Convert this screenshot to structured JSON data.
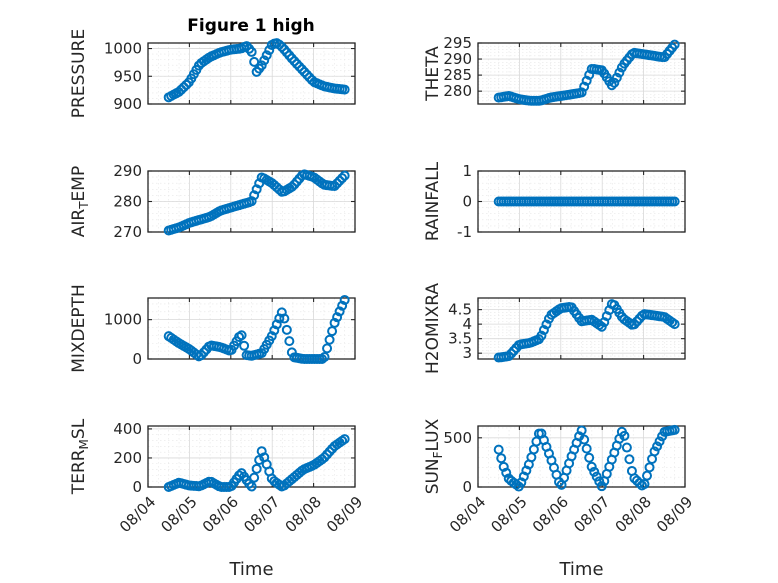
{
  "figure": {
    "title": "Figure 1 high",
    "marker_color": "#0072BD"
  },
  "chart_data": [
    {
      "type": "scatter",
      "title": "Figure 1 high",
      "ylabel": "PRESSURE",
      "ylim": [
        900,
        1010
      ],
      "yticks": [
        "900",
        "950",
        "1000"
      ],
      "xlim": [
        "08/04",
        "08/09"
      ],
      "xlabel": "",
      "xticklabels": [],
      "series": [
        {
          "x": [
            "08/04 12:00",
            "08/04 18:00",
            "08/05 00:00",
            "08/05 06:00",
            "08/05 12:00",
            "08/05 18:00",
            "08/06 00:00",
            "08/06 06:00",
            "08/06 09:00",
            "08/06 12:00",
            "08/06 15:00",
            "08/06 18:00",
            "08/07 00:00",
            "08/07 03:00",
            "08/07 06:00",
            "08/07 12:00",
            "08/07 18:00",
            "08/08 00:00",
            "08/08 06:00",
            "08/08 12:00",
            "08/08 18:00"
          ],
          "y": [
            912,
            922,
            940,
            972,
            985,
            993,
            998,
            1000,
            1005,
            995,
            958,
            970,
            1008,
            1010,
            1002,
            980,
            960,
            940,
            932,
            928,
            926
          ]
        }
      ]
    },
    {
      "type": "scatter",
      "ylabel": "THETA",
      "ylim": [
        276,
        295
      ],
      "yticks": [
        "280",
        "285",
        "290",
        "295"
      ],
      "xlim": [
        "08/04",
        "08/09"
      ],
      "xticklabels": [],
      "series": [
        {
          "x": [
            "08/04 12:00",
            "08/04 18:00",
            "08/05 00:00",
            "08/05 06:00",
            "08/05 12:00",
            "08/05 18:00",
            "08/06 00:00",
            "08/06 06:00",
            "08/06 12:00",
            "08/06 18:00",
            "08/07 00:00",
            "08/07 06:00",
            "08/07 12:00",
            "08/07 18:00",
            "08/08 00:00",
            "08/08 06:00",
            "08/08 12:00",
            "08/08 18:00"
          ],
          "y": [
            278,
            278.5,
            277.5,
            277,
            277,
            278,
            278.5,
            279,
            279.5,
            287,
            286.5,
            281.5,
            288,
            292,
            291.5,
            291,
            290.5,
            294.5
          ]
        }
      ]
    },
    {
      "type": "scatter",
      "ylabel": "AIR_TEMP",
      "ylim": [
        270,
        290
      ],
      "yticks": [
        "270",
        "280",
        "290"
      ],
      "xlim": [
        "08/04",
        "08/09"
      ],
      "xticklabels": [],
      "series": [
        {
          "x": [
            "08/04 12:00",
            "08/04 18:00",
            "08/05 00:00",
            "08/05 06:00",
            "08/05 12:00",
            "08/05 18:00",
            "08/06 00:00",
            "08/06 06:00",
            "08/06 12:00",
            "08/06 18:00",
            "08/07 00:00",
            "08/07 06:00",
            "08/07 12:00",
            "08/07 18:00",
            "08/08 00:00",
            "08/08 06:00",
            "08/08 12:00",
            "08/08 18:00"
          ],
          "y": [
            270.5,
            271.5,
            273,
            274,
            275,
            277,
            278,
            279,
            280,
            288,
            286,
            283,
            285,
            289,
            288,
            285.5,
            285,
            288.5
          ]
        }
      ]
    },
    {
      "type": "scatter",
      "ylabel": "RAINFALL",
      "ylim": [
        -1,
        1
      ],
      "yticks": [
        "-1",
        "0",
        "1"
      ],
      "xlim": [
        "08/04",
        "08/09"
      ],
      "xticklabels": [],
      "series": [
        {
          "x": [
            "08/04 12:00",
            "08/05 00:00",
            "08/05 12:00",
            "08/06 00:00",
            "08/06 12:00",
            "08/07 00:00",
            "08/07 12:00",
            "08/08 00:00",
            "08/08 12:00",
            "08/08 18:00"
          ],
          "y": [
            0,
            0,
            0,
            0,
            0,
            0,
            0,
            0,
            0,
            0
          ]
        }
      ]
    },
    {
      "type": "scatter",
      "ylabel": "MIXDEPTH",
      "ylim": [
        0,
        1550
      ],
      "yticks": [
        "0",
        "1000"
      ],
      "xlim": [
        "08/04",
        "08/09"
      ],
      "xticklabels": [],
      "series": [
        {
          "x": [
            "08/04 12:00",
            "08/04 18:00",
            "08/05 00:00",
            "08/05 03:00",
            "08/05 06:00",
            "08/05 12:00",
            "08/05 18:00",
            "08/06 00:00",
            "08/06 06:00",
            "08/06 09:00",
            "08/06 12:00",
            "08/06 18:00",
            "08/07 00:00",
            "08/07 06:00",
            "08/07 12:00",
            "08/07 18:00",
            "08/08 00:00",
            "08/08 06:00",
            "08/08 12:00",
            "08/08 18:00"
          ],
          "y": [
            580,
            400,
            250,
            150,
            50,
            350,
            300,
            200,
            650,
            100,
            80,
            150,
            600,
            1230,
            50,
            0,
            0,
            0,
            900,
            1500
          ]
        }
      ]
    },
    {
      "type": "scatter",
      "ylabel": "H2OMIXRA",
      "ylim": [
        2.8,
        4.9
      ],
      "yticks": [
        "3",
        "3.5",
        "4",
        "4.5"
      ],
      "xlim": [
        "08/04",
        "08/09"
      ],
      "xticklabels": [],
      "series": [
        {
          "x": [
            "08/04 12:00",
            "08/04 18:00",
            "08/05 00:00",
            "08/05 06:00",
            "08/05 12:00",
            "08/05 18:00",
            "08/06 00:00",
            "08/06 06:00",
            "08/06 12:00",
            "08/06 18:00",
            "08/07 00:00",
            "08/07 06:00",
            "08/07 12:00",
            "08/07 18:00",
            "08/08 00:00",
            "08/08 06:00",
            "08/08 12:00",
            "08/08 18:00"
          ],
          "y": [
            2.85,
            2.9,
            3.3,
            3.35,
            3.5,
            4.3,
            4.55,
            4.6,
            4.1,
            4.15,
            3.9,
            4.75,
            4.2,
            3.95,
            4.35,
            4.3,
            4.25,
            4.0
          ]
        }
      ]
    },
    {
      "type": "scatter",
      "ylabel": "TERR_MSL",
      "ylim": [
        0,
        420
      ],
      "yticks": [
        "0",
        "200",
        "400"
      ],
      "xlim": [
        "08/04",
        "08/09"
      ],
      "xlabel": "Time",
      "xticklabels": [
        "08/04",
        "08/05",
        "08/06",
        "08/07",
        "08/08",
        "08/09"
      ],
      "series": [
        {
          "x": [
            "08/04 12:00",
            "08/04 18:00",
            "08/05 00:00",
            "08/05 06:00",
            "08/05 12:00",
            "08/05 18:00",
            "08/06 00:00",
            "08/06 06:00",
            "08/06 12:00",
            "08/06 18:00",
            "08/07 00:00",
            "08/07 06:00",
            "08/07 12:00",
            "08/07 18:00",
            "08/08 00:00",
            "08/08 06:00",
            "08/08 12:00",
            "08/08 18:00"
          ],
          "y": [
            0,
            30,
            10,
            5,
            40,
            0,
            0,
            100,
            0,
            250,
            50,
            0,
            60,
            120,
            150,
            200,
            280,
            330
          ]
        }
      ]
    },
    {
      "type": "scatter",
      "ylabel": "SUN_FLUX",
      "ylim": [
        0,
        620
      ],
      "yticks": [
        "0",
        "500"
      ],
      "xlim": [
        "08/04",
        "08/09"
      ],
      "xlabel": "Time",
      "xticklabels": [
        "08/04",
        "08/05",
        "08/06",
        "08/07",
        "08/08",
        "08/09"
      ],
      "series": [
        {
          "x": [
            "08/04 12:00",
            "08/04 15:00",
            "08/04 18:00",
            "08/05 00:00",
            "08/05 06:00",
            "08/05 12:00",
            "08/05 18:00",
            "08/06 00:00",
            "08/06 06:00",
            "08/06 12:00",
            "08/06 18:00",
            "08/07 00:00",
            "08/07 06:00",
            "08/07 12:00",
            "08/07 18:00",
            "08/08 00:00",
            "08/08 06:00",
            "08/08 12:00",
            "08/08 18:00"
          ],
          "y": [
            380,
            200,
            80,
            0,
            250,
            580,
            300,
            0,
            300,
            580,
            200,
            0,
            300,
            590,
            100,
            0,
            350,
            560,
            580
          ]
        }
      ]
    }
  ]
}
